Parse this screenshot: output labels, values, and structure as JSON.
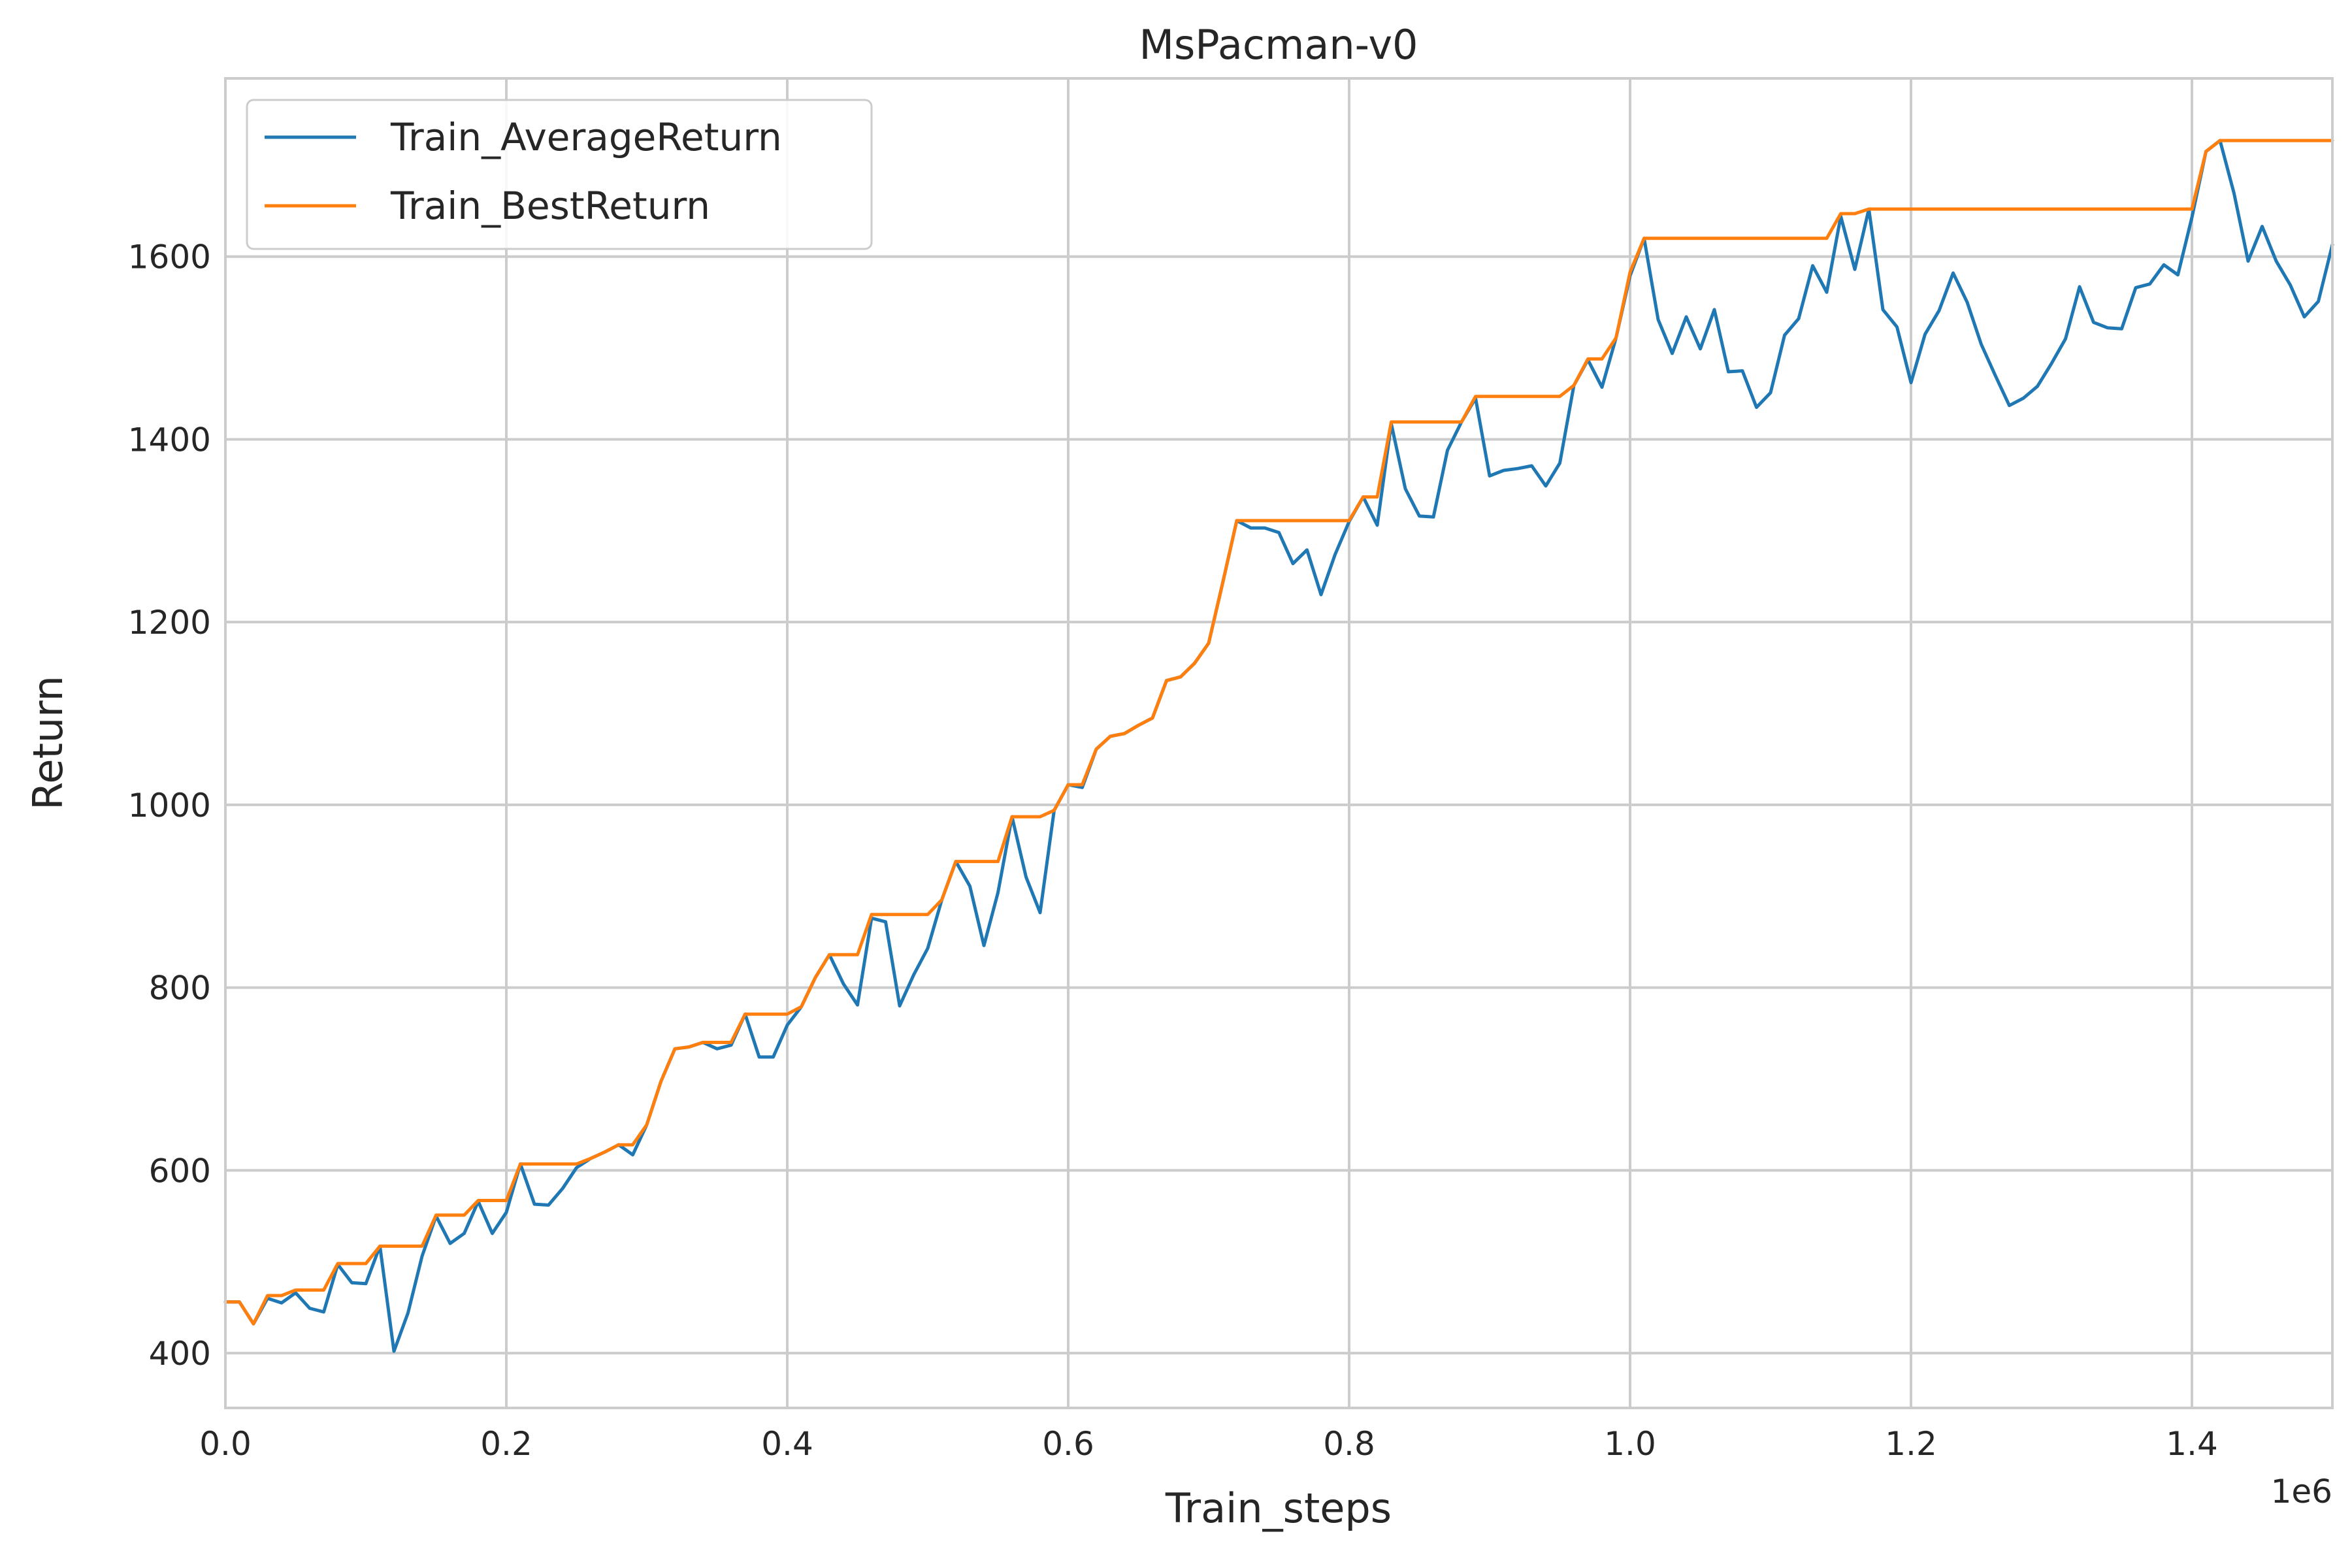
{
  "chart_data": {
    "type": "line",
    "title": "MsPacman-v0",
    "xlabel": "Train_steps",
    "ylabel": "Return",
    "x_offset_label": "1e6",
    "xlim": [
      0,
      1.5
    ],
    "ylim": [
      340,
      1795
    ],
    "xticks": [
      0.0,
      0.2,
      0.4,
      0.6,
      0.8,
      1.0,
      1.2,
      1.4
    ],
    "xtick_labels": [
      "0.0",
      "0.2",
      "0.4",
      "0.6",
      "0.8",
      "1.0",
      "1.2",
      "1.4"
    ],
    "yticks": [
      400,
      600,
      800,
      1000,
      1200,
      1400,
      1600
    ],
    "ytick_labels": [
      "400",
      "600",
      "800",
      "1000",
      "1200",
      "1400",
      "1600"
    ],
    "grid": true,
    "legend_position": "top-left",
    "series": [
      {
        "name": "Train_AverageReturn",
        "color": "#1f77b4",
        "points": [
          [
            0.0,
            456
          ],
          [
            0.01,
            456
          ],
          [
            0.02,
            432
          ],
          [
            0.03,
            460
          ],
          [
            0.04,
            455
          ],
          [
            0.05,
            466
          ],
          [
            0.06,
            449
          ],
          [
            0.07,
            445
          ],
          [
            0.08,
            497
          ],
          [
            0.09,
            477
          ],
          [
            0.1,
            476
          ],
          [
            0.11,
            517
          ],
          [
            0.12,
            402
          ],
          [
            0.13,
            444
          ],
          [
            0.14,
            506
          ],
          [
            0.15,
            550
          ],
          [
            0.16,
            520
          ],
          [
            0.17,
            531
          ],
          [
            0.18,
            566
          ],
          [
            0.19,
            531
          ],
          [
            0.2,
            554
          ],
          [
            0.21,
            607
          ],
          [
            0.22,
            563
          ],
          [
            0.23,
            562
          ],
          [
            0.24,
            580
          ],
          [
            0.25,
            603
          ],
          [
            0.26,
            613
          ],
          [
            0.27,
            620
          ],
          [
            0.28,
            628
          ],
          [
            0.29,
            617
          ],
          [
            0.3,
            650
          ],
          [
            0.31,
            697
          ],
          [
            0.32,
            733
          ],
          [
            0.33,
            735
          ],
          [
            0.34,
            740
          ],
          [
            0.35,
            733
          ],
          [
            0.36,
            737
          ],
          [
            0.37,
            771
          ],
          [
            0.38,
            724
          ],
          [
            0.39,
            724
          ],
          [
            0.4,
            759
          ],
          [
            0.41,
            779
          ],
          [
            0.42,
            811
          ],
          [
            0.43,
            836
          ],
          [
            0.44,
            804
          ],
          [
            0.45,
            781
          ],
          [
            0.46,
            876
          ],
          [
            0.47,
            872
          ],
          [
            0.48,
            780
          ],
          [
            0.49,
            814
          ],
          [
            0.5,
            843
          ],
          [
            0.51,
            896
          ],
          [
            0.52,
            938
          ],
          [
            0.53,
            911
          ],
          [
            0.54,
            846
          ],
          [
            0.55,
            904
          ],
          [
            0.56,
            987
          ],
          [
            0.57,
            921
          ],
          [
            0.58,
            882
          ],
          [
            0.59,
            994
          ],
          [
            0.6,
            1022
          ],
          [
            0.61,
            1019
          ],
          [
            0.62,
            1061
          ],
          [
            0.63,
            1075
          ],
          [
            0.64,
            1078
          ],
          [
            0.65,
            1087
          ],
          [
            0.66,
            1095
          ],
          [
            0.67,
            1136
          ],
          [
            0.68,
            1140
          ],
          [
            0.69,
            1155
          ],
          [
            0.7,
            1177
          ],
          [
            0.71,
            1243
          ],
          [
            0.72,
            1311
          ],
          [
            0.73,
            1303
          ],
          [
            0.74,
            1303
          ],
          [
            0.75,
            1298
          ],
          [
            0.76,
            1264
          ],
          [
            0.77,
            1279
          ],
          [
            0.78,
            1230
          ],
          [
            0.79,
            1274
          ],
          [
            0.8,
            1310
          ],
          [
            0.81,
            1337
          ],
          [
            0.82,
            1306
          ],
          [
            0.83,
            1417
          ],
          [
            0.84,
            1346
          ],
          [
            0.85,
            1316
          ],
          [
            0.86,
            1315
          ],
          [
            0.87,
            1388
          ],
          [
            0.88,
            1419
          ],
          [
            0.89,
            1445
          ],
          [
            0.9,
            1360
          ],
          [
            0.91,
            1366
          ],
          [
            0.92,
            1368
          ],
          [
            0.93,
            1371
          ],
          [
            0.94,
            1349
          ],
          [
            0.95,
            1374
          ],
          [
            0.96,
            1459
          ],
          [
            0.97,
            1487
          ],
          [
            0.98,
            1457
          ],
          [
            0.99,
            1511
          ],
          [
            1.0,
            1579
          ],
          [
            1.01,
            1620
          ],
          [
            1.02,
            1531
          ],
          [
            1.03,
            1494
          ],
          [
            1.04,
            1534
          ],
          [
            1.05,
            1499
          ],
          [
            1.06,
            1542
          ],
          [
            1.07,
            1474
          ],
          [
            1.08,
            1475
          ],
          [
            1.09,
            1435
          ],
          [
            1.1,
            1451
          ],
          [
            1.11,
            1514
          ],
          [
            1.12,
            1532
          ],
          [
            1.13,
            1590
          ],
          [
            1.14,
            1561
          ],
          [
            1.15,
            1644
          ],
          [
            1.16,
            1586
          ],
          [
            1.17,
            1652
          ],
          [
            1.18,
            1542
          ],
          [
            1.19,
            1523
          ],
          [
            1.2,
            1462
          ],
          [
            1.21,
            1515
          ],
          [
            1.22,
            1541
          ],
          [
            1.23,
            1582
          ],
          [
            1.24,
            1550
          ],
          [
            1.25,
            1504
          ],
          [
            1.26,
            1470
          ],
          [
            1.27,
            1437
          ],
          [
            1.28,
            1445
          ],
          [
            1.29,
            1458
          ],
          [
            1.3,
            1483
          ],
          [
            1.31,
            1510
          ],
          [
            1.32,
            1567
          ],
          [
            1.33,
            1528
          ],
          [
            1.34,
            1522
          ],
          [
            1.35,
            1521
          ],
          [
            1.36,
            1566
          ],
          [
            1.37,
            1570
          ],
          [
            1.38,
            1591
          ],
          [
            1.39,
            1580
          ],
          [
            1.4,
            1643
          ],
          [
            1.41,
            1715
          ],
          [
            1.42,
            1727
          ],
          [
            1.43,
            1669
          ],
          [
            1.44,
            1595
          ],
          [
            1.45,
            1633
          ],
          [
            1.46,
            1595
          ],
          [
            1.47,
            1569
          ],
          [
            1.48,
            1534
          ],
          [
            1.49,
            1551
          ],
          [
            1.5,
            1613
          ]
        ]
      },
      {
        "name": "Train_BestReturn",
        "color": "#ff7f0e",
        "points": [
          [
            0.0,
            456
          ],
          [
            0.01,
            456
          ],
          [
            0.02,
            432
          ],
          [
            0.03,
            463
          ],
          [
            0.04,
            463
          ],
          [
            0.05,
            469
          ],
          [
            0.06,
            469
          ],
          [
            0.07,
            469
          ],
          [
            0.08,
            498
          ],
          [
            0.09,
            498
          ],
          [
            0.1,
            498
          ],
          [
            0.11,
            517
          ],
          [
            0.12,
            517
          ],
          [
            0.13,
            517
          ],
          [
            0.14,
            517
          ],
          [
            0.15,
            551
          ],
          [
            0.16,
            551
          ],
          [
            0.17,
            551
          ],
          [
            0.18,
            567
          ],
          [
            0.19,
            567
          ],
          [
            0.2,
            567
          ],
          [
            0.21,
            607
          ],
          [
            0.22,
            607
          ],
          [
            0.23,
            607
          ],
          [
            0.24,
            607
          ],
          [
            0.25,
            607
          ],
          [
            0.26,
            613
          ],
          [
            0.27,
            620
          ],
          [
            0.28,
            628
          ],
          [
            0.29,
            628
          ],
          [
            0.3,
            650
          ],
          [
            0.31,
            697
          ],
          [
            0.32,
            733
          ],
          [
            0.33,
            735
          ],
          [
            0.34,
            740
          ],
          [
            0.35,
            740
          ],
          [
            0.36,
            740
          ],
          [
            0.37,
            771
          ],
          [
            0.38,
            771
          ],
          [
            0.39,
            771
          ],
          [
            0.4,
            771
          ],
          [
            0.41,
            779
          ],
          [
            0.42,
            811
          ],
          [
            0.43,
            836
          ],
          [
            0.44,
            836
          ],
          [
            0.45,
            836
          ],
          [
            0.46,
            880
          ],
          [
            0.47,
            880
          ],
          [
            0.48,
            880
          ],
          [
            0.49,
            880
          ],
          [
            0.5,
            880
          ],
          [
            0.51,
            896
          ],
          [
            0.52,
            938
          ],
          [
            0.53,
            938
          ],
          [
            0.54,
            938
          ],
          [
            0.55,
            938
          ],
          [
            0.56,
            987
          ],
          [
            0.57,
            987
          ],
          [
            0.58,
            987
          ],
          [
            0.59,
            994
          ],
          [
            0.6,
            1022
          ],
          [
            0.61,
            1022
          ],
          [
            0.62,
            1061
          ],
          [
            0.63,
            1075
          ],
          [
            0.64,
            1078
          ],
          [
            0.65,
            1087
          ],
          [
            0.66,
            1095
          ],
          [
            0.67,
            1136
          ],
          [
            0.68,
            1140
          ],
          [
            0.69,
            1155
          ],
          [
            0.7,
            1177
          ],
          [
            0.71,
            1243
          ],
          [
            0.72,
            1311
          ],
          [
            0.73,
            1311
          ],
          [
            0.74,
            1311
          ],
          [
            0.75,
            1311
          ],
          [
            0.76,
            1311
          ],
          [
            0.77,
            1311
          ],
          [
            0.78,
            1311
          ],
          [
            0.79,
            1311
          ],
          [
            0.8,
            1311
          ],
          [
            0.81,
            1337
          ],
          [
            0.82,
            1337
          ],
          [
            0.83,
            1419
          ],
          [
            0.84,
            1419
          ],
          [
            0.85,
            1419
          ],
          [
            0.86,
            1419
          ],
          [
            0.87,
            1419
          ],
          [
            0.88,
            1419
          ],
          [
            0.89,
            1447
          ],
          [
            0.9,
            1447
          ],
          [
            0.91,
            1447
          ],
          [
            0.92,
            1447
          ],
          [
            0.93,
            1447
          ],
          [
            0.94,
            1447
          ],
          [
            0.95,
            1447
          ],
          [
            0.96,
            1459
          ],
          [
            0.97,
            1488
          ],
          [
            0.98,
            1488
          ],
          [
            0.99,
            1511
          ],
          [
            1.0,
            1583
          ],
          [
            1.01,
            1620
          ],
          [
            1.02,
            1620
          ],
          [
            1.03,
            1620
          ],
          [
            1.04,
            1620
          ],
          [
            1.05,
            1620
          ],
          [
            1.06,
            1620
          ],
          [
            1.07,
            1620
          ],
          [
            1.08,
            1620
          ],
          [
            1.09,
            1620
          ],
          [
            1.1,
            1620
          ],
          [
            1.11,
            1620
          ],
          [
            1.12,
            1620
          ],
          [
            1.13,
            1620
          ],
          [
            1.14,
            1620
          ],
          [
            1.15,
            1647
          ],
          [
            1.16,
            1647
          ],
          [
            1.17,
            1652
          ],
          [
            1.18,
            1652
          ],
          [
            1.19,
            1652
          ],
          [
            1.2,
            1652
          ],
          [
            1.21,
            1652
          ],
          [
            1.22,
            1652
          ],
          [
            1.23,
            1652
          ],
          [
            1.24,
            1652
          ],
          [
            1.25,
            1652
          ],
          [
            1.26,
            1652
          ],
          [
            1.27,
            1652
          ],
          [
            1.28,
            1652
          ],
          [
            1.29,
            1652
          ],
          [
            1.3,
            1652
          ],
          [
            1.31,
            1652
          ],
          [
            1.32,
            1652
          ],
          [
            1.33,
            1652
          ],
          [
            1.34,
            1652
          ],
          [
            1.35,
            1652
          ],
          [
            1.36,
            1652
          ],
          [
            1.37,
            1652
          ],
          [
            1.38,
            1652
          ],
          [
            1.39,
            1652
          ],
          [
            1.4,
            1652
          ],
          [
            1.41,
            1715
          ],
          [
            1.42,
            1727
          ],
          [
            1.43,
            1727
          ],
          [
            1.44,
            1727
          ],
          [
            1.45,
            1727
          ],
          [
            1.46,
            1727
          ],
          [
            1.47,
            1727
          ],
          [
            1.48,
            1727
          ],
          [
            1.49,
            1727
          ],
          [
            1.5,
            1727
          ]
        ]
      }
    ]
  }
}
